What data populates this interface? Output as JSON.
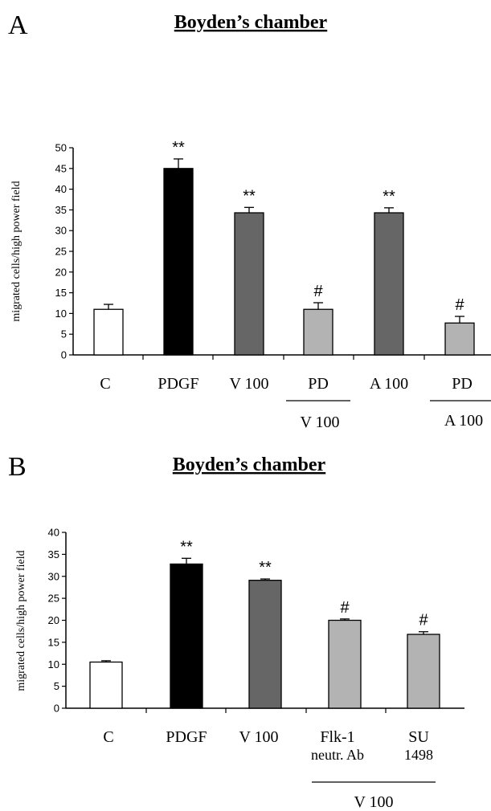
{
  "chart_data": [
    {
      "type": "bar",
      "panel_label": "A",
      "title": "Boyden’s chamber",
      "ylabel": "migrated cells/high power field",
      "ylim": [
        0,
        50
      ],
      "yticks": [
        "0",
        "5",
        "10",
        "15",
        "20",
        "25",
        "30",
        "35",
        "40",
        "45",
        "50"
      ],
      "categories": [
        "C",
        "PDGF",
        "V 100",
        "PD",
        "A 100",
        "PD"
      ],
      "values": [
        11,
        45,
        34.3,
        11,
        34.3,
        7.7
      ],
      "errors": [
        1.2,
        2.3,
        1.3,
        1.6,
        1.2,
        1.6
      ],
      "colors": [
        "#ffffff",
        "#000000",
        "#666666",
        "#b3b3b3",
        "#666666",
        "#b3b3b3"
      ],
      "significance": [
        "",
        "**",
        "**",
        "#",
        "**",
        "#"
      ],
      "group_labels": [
        "V 100",
        "A 100"
      ],
      "grid": false
    },
    {
      "type": "bar",
      "panel_label": "B",
      "title": "Boyden’s chamber",
      "ylabel": "migrated cells/high power field",
      "ylim": [
        0,
        40
      ],
      "yticks": [
        "0",
        "5",
        "10",
        "15",
        "20",
        "25",
        "30",
        "35",
        "40"
      ],
      "categories": [
        "C",
        "PDGF",
        "V 100",
        "Flk-1",
        "SU"
      ],
      "categories_line2": [
        "",
        "",
        "",
        "neutr. Ab",
        "1498"
      ],
      "values": [
        10.5,
        32.8,
        29.1,
        20,
        16.8
      ],
      "errors": [
        0.3,
        1.3,
        0.3,
        0.3,
        0.6
      ],
      "colors": [
        "#ffffff",
        "#000000",
        "#666666",
        "#b3b3b3",
        "#b3b3b3"
      ],
      "significance": [
        "",
        "**",
        "**",
        "#",
        "#"
      ],
      "group_labels": [
        "V 100"
      ],
      "grid": false
    }
  ]
}
